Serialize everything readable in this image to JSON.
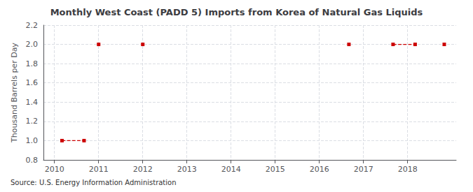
{
  "chart_data": {
    "type": "line",
    "title": "Monthly West Coast (PADD 5) Imports from Korea of Natural Gas Liquids",
    "ylabel": "Thousand Barrels per Day",
    "annotations": [
      "Source: U.S. Energy Information Administration"
    ],
    "color": "#cc0000",
    "marker": "square",
    "line_style": "dashed",
    "series": [
      {
        "x": [
          2010.17,
          2010.67
        ],
        "values": [
          1.0,
          1.0
        ]
      },
      {
        "x": [
          2011.0
        ],
        "values": [
          2.0
        ]
      },
      {
        "x": [
          2012.0
        ],
        "values": [
          2.0
        ]
      },
      {
        "x": [
          2016.67
        ],
        "values": [
          2.0
        ]
      },
      {
        "x": [
          2017.67,
          2018.17
        ],
        "values": [
          2.0,
          2.0
        ]
      },
      {
        "x": [
          2018.83
        ],
        "values": [
          2.0
        ]
      }
    ],
    "xlim": [
      2009.75,
      2019.1
    ],
    "xticks": [
      2010,
      2011,
      2012,
      2013,
      2014,
      2015,
      2016,
      2017,
      2018
    ],
    "ylim": [
      0.8,
      2.2
    ],
    "yticks": [
      0.8,
      {
        "value": 1.0,
        "label": "1.0"
      },
      1.2,
      1.4,
      1.6,
      1.8,
      {
        "value": 2.0,
        "label": "2.0"
      },
      2.2
    ],
    "grid": true
  }
}
